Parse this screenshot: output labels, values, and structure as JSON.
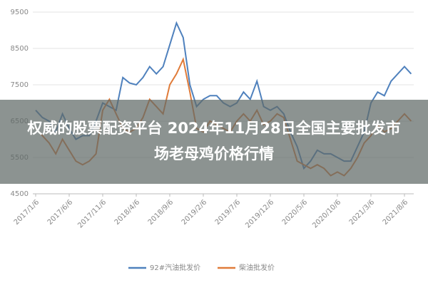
{
  "chart_data": {
    "type": "line",
    "categories": [
      "2017/1/6",
      null,
      null,
      null,
      null,
      "2017/6/6",
      null,
      null,
      null,
      null,
      "2017/11/6",
      null,
      null,
      null,
      null,
      "2018/4/6",
      null,
      null,
      null,
      null,
      "2018/9/6",
      null,
      null,
      null,
      null,
      "2019/2/6",
      null,
      null,
      null,
      null,
      "2019/7/6",
      null,
      null,
      null,
      null,
      "2019/12/6",
      null,
      null,
      null,
      null,
      "2020/5/6",
      null,
      null,
      null,
      null,
      "2020/10/6",
      null,
      null,
      null,
      null,
      "2021/3/6",
      null,
      null,
      null,
      null,
      "2021/8/6",
      null
    ],
    "series": [
      {
        "name": "92#汽油批发价",
        "color": "#4f81bd",
        "values": [
          6800,
          6600,
          6500,
          6200,
          6700,
          6300,
          6000,
          6100,
          6100,
          6500,
          7000,
          6900,
          6800,
          7700,
          7550,
          7500,
          7700,
          8000,
          7800,
          8000,
          8600,
          9200,
          8800,
          7500,
          6900,
          7100,
          7200,
          7200,
          7000,
          6900,
          7000,
          7300,
          7100,
          7600,
          6900,
          6800,
          6900,
          6700,
          6200,
          5800,
          5200,
          5400,
          5700,
          5600,
          5600,
          5500,
          5400,
          5400,
          5800,
          6200,
          7000,
          7300,
          7200,
          7600,
          7800,
          8000,
          7800
        ]
      },
      {
        "name": "柴油批发价",
        "color": "#e07b39",
        "values": [
          6300,
          6100,
          5900,
          5600,
          6000,
          5700,
          5400,
          5300,
          5400,
          5600,
          6800,
          7100,
          6700,
          6300,
          6200,
          6300,
          6600,
          7100,
          6900,
          6700,
          7500,
          7800,
          8200,
          7300,
          6300,
          6200,
          6500,
          6400,
          6300,
          6200,
          6500,
          6700,
          6500,
          6800,
          6400,
          6500,
          6700,
          6600,
          6000,
          5400,
          5300,
          5200,
          5300,
          5200,
          5000,
          5100,
          5000,
          5200,
          5500,
          5900,
          6100,
          6400,
          6200,
          6300,
          6500,
          6700,
          6500
        ]
      }
    ],
    "ylim": [
      4500,
      9500
    ],
    "yticks": [
      4500,
      5500,
      6500,
      7500,
      8500,
      9500
    ],
    "grid": true,
    "legend": "bottom"
  },
  "overlay": {
    "text": "权威的股票配资平台 2024年11月28日全国主要批发市场老母鸡价格行情"
  }
}
